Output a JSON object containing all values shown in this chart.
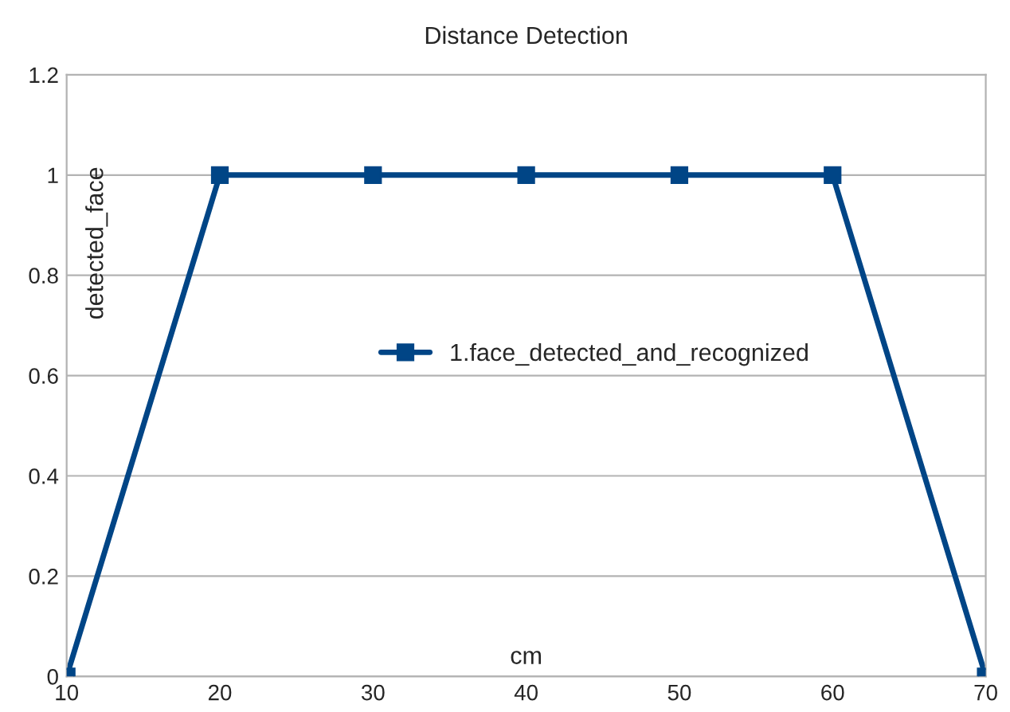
{
  "chart_data": {
    "type": "line",
    "title": "Distance Detection",
    "xlabel": "cm",
    "ylabel": "detected_face",
    "x": [
      10,
      20,
      30,
      40,
      50,
      60,
      70
    ],
    "series": [
      {
        "name": "1.face_detected_and_recognized",
        "color": "#004586",
        "values": [
          0,
          1,
          1,
          1,
          1,
          1,
          0
        ]
      }
    ],
    "xlim": [
      10,
      70
    ],
    "xticks": [
      10,
      20,
      30,
      40,
      50,
      60,
      70
    ],
    "ylim": [
      0,
      1.2
    ],
    "yticks": [
      0,
      0.2,
      0.4,
      0.6,
      0.8,
      1,
      1.2
    ],
    "grid": "y",
    "legend": "center",
    "marker": "square",
    "line_style": "solid"
  }
}
